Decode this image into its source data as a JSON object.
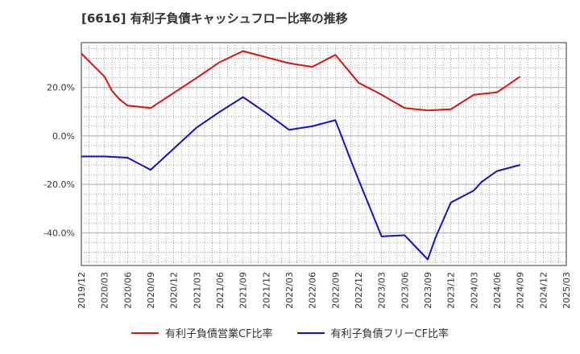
{
  "title": "[6616]  有利子負債キャッシュフロー比率の推移",
  "chart_data": {
    "type": "line",
    "title": "[6616]  有利子負債キャッシュフロー比率の推移",
    "xlabel": "",
    "ylabel": "",
    "x_ticks": [
      "2019/12",
      "2020/03",
      "2020/06",
      "2020/09",
      "2020/12",
      "2021/03",
      "2021/06",
      "2021/09",
      "2021/12",
      "2022/03",
      "2022/06",
      "2022/09",
      "2022/12",
      "2023/03",
      "2023/06",
      "2023/09",
      "2023/12",
      "2024/03",
      "2024/06",
      "2024/09",
      "2024/12",
      "2025/03"
    ],
    "y_ticks": [
      {
        "value": 20,
        "label": "20.0%"
      },
      {
        "value": 0,
        "label": "0.0%"
      },
      {
        "value": -20,
        "label": "-20.0%"
      },
      {
        "value": -40,
        "label": "-40.0%"
      }
    ],
    "ylim": [
      -53.5,
      38.5
    ],
    "grid": true,
    "legend_position": "bottom",
    "series": [
      {
        "name": "有利子負債営業CF比率",
        "color": "#dd1111",
        "points": [
          {
            "x": "2019/12",
            "y": 34.0
          },
          {
            "x": "2020/03",
            "y": 24.5
          },
          {
            "x": "2020/04",
            "y": 18.5
          },
          {
            "x": "2020/05",
            "y": 15.0
          },
          {
            "x": "2020/06",
            "y": 12.5
          },
          {
            "x": "2020/09",
            "y": 11.5
          },
          {
            "x": "2021/03",
            "y": 24.0
          },
          {
            "x": "2021/06",
            "y": 30.5
          },
          {
            "x": "2021/09",
            "y": 35.0
          },
          {
            "x": "2021/12",
            "y": 32.5
          },
          {
            "x": "2022/03",
            "y": 30.0
          },
          {
            "x": "2022/06",
            "y": 28.5
          },
          {
            "x": "2022/09",
            "y": 33.5
          },
          {
            "x": "2022/12",
            "y": 22.0
          },
          {
            "x": "2023/03",
            "y": 17.0
          },
          {
            "x": "2023/06",
            "y": 11.5
          },
          {
            "x": "2023/09",
            "y": 10.5
          },
          {
            "x": "2023/12",
            "y": 11.0
          },
          {
            "x": "2024/03",
            "y": 17.0
          },
          {
            "x": "2024/06",
            "y": 18.0
          },
          {
            "x": "2024/09",
            "y": 24.5
          }
        ]
      },
      {
        "name": "有利子負債フリーCF比率",
        "color": "#1111cc",
        "points": [
          {
            "x": "2019/12",
            "y": -8.5
          },
          {
            "x": "2020/03",
            "y": -8.5
          },
          {
            "x": "2020/06",
            "y": -9.0
          },
          {
            "x": "2020/09",
            "y": -14.0
          },
          {
            "x": "2021/03",
            "y": 3.5
          },
          {
            "x": "2021/06",
            "y": 10.0
          },
          {
            "x": "2021/09",
            "y": 16.0
          },
          {
            "x": "2021/12",
            "y": 9.5
          },
          {
            "x": "2022/03",
            "y": 2.5
          },
          {
            "x": "2022/06",
            "y": 4.0
          },
          {
            "x": "2022/09",
            "y": 6.5
          },
          {
            "x": "2022/11",
            "y": -10.0
          },
          {
            "x": "2022/12",
            "y": -18.0
          },
          {
            "x": "2023/03",
            "y": -41.5
          },
          {
            "x": "2023/06",
            "y": -41.0
          },
          {
            "x": "2023/09",
            "y": -51.0
          },
          {
            "x": "2023/10",
            "y": -42.0
          },
          {
            "x": "2023/12",
            "y": -27.5
          },
          {
            "x": "2024/03",
            "y": -22.5
          },
          {
            "x": "2024/04",
            "y": -19.0
          },
          {
            "x": "2024/06",
            "y": -14.5
          },
          {
            "x": "2024/09",
            "y": -12.0
          }
        ]
      }
    ]
  }
}
